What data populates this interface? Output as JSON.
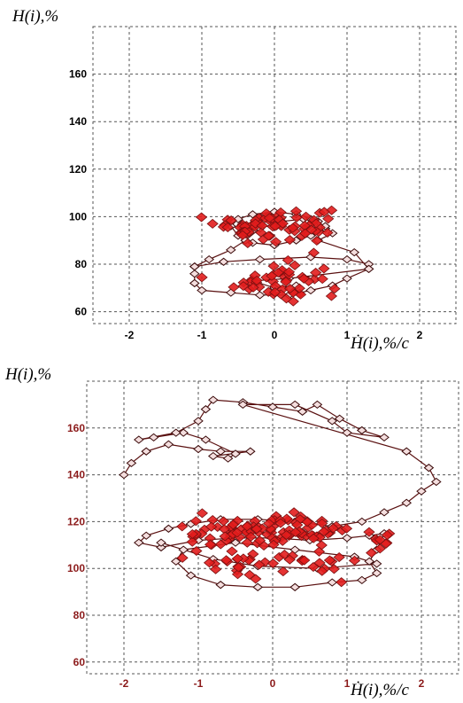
{
  "chart_data": [
    {
      "type": "scatter",
      "title": "",
      "ylabel": "H(i),%",
      "xlabel": "Ḣ(i),%/c",
      "xlim": [
        -2.5,
        2.5
      ],
      "ylim": [
        55,
        180
      ],
      "xticks": [
        -2,
        -1,
        0,
        1,
        2
      ],
      "yticks": [
        60,
        80,
        100,
        120,
        140,
        160
      ],
      "grid": true,
      "tick_color": "#000000",
      "line_color": "#5a1010",
      "marker_color": "#e21d1d",
      "trajectory": [
        [
          -1.1,
          79
        ],
        [
          -0.7,
          81
        ],
        [
          -0.2,
          82
        ],
        [
          0.5,
          83
        ],
        [
          1.0,
          82
        ],
        [
          1.3,
          80
        ],
        [
          1.3,
          78
        ],
        [
          1.0,
          74
        ],
        [
          0.8,
          71
        ],
        [
          0.5,
          69
        ],
        [
          0.2,
          67
        ],
        [
          -0.2,
          67
        ],
        [
          -0.6,
          68
        ],
        [
          -1.0,
          69
        ],
        [
          -1.1,
          72
        ],
        [
          -1.1,
          76
        ],
        [
          -1.1,
          79
        ],
        [
          -0.9,
          82
        ],
        [
          -0.6,
          86
        ],
        [
          -0.4,
          90
        ],
        [
          -0.2,
          95
        ],
        [
          0.1,
          98
        ],
        [
          0.4,
          99
        ],
        [
          0.6,
          98
        ],
        [
          0.7,
          95
        ],
        [
          0.5,
          92
        ],
        [
          0.3,
          90
        ],
        [
          0.0,
          88
        ],
        [
          -0.3,
          89
        ],
        [
          -0.5,
          92
        ],
        [
          -0.6,
          96
        ],
        [
          -0.5,
          99
        ],
        [
          -0.3,
          101
        ],
        [
          0.0,
          102
        ],
        [
          0.3,
          101
        ],
        [
          0.5,
          99
        ],
        [
          0.7,
          96
        ],
        [
          0.8,
          93
        ],
        [
          0.6,
          90
        ],
        [
          1.1,
          85
        ],
        [
          1.3,
          78
        ],
        [
          0.2,
          74
        ],
        [
          -0.3,
          73
        ],
        [
          0.0,
          70
        ],
        [
          0.3,
          71
        ]
      ],
      "clusters": [
        {
          "x": 0.0,
          "y": 98,
          "sx": 0.4,
          "sy": 3,
          "n": 55
        },
        {
          "x": -0.4,
          "y": 93,
          "sx": 0.2,
          "sy": 2,
          "n": 15
        },
        {
          "x": 0.05,
          "y": 73,
          "sx": 0.3,
          "sy": 4,
          "n": 50
        },
        {
          "x": 0.45,
          "y": 94,
          "sx": 0.2,
          "sy": 3,
          "n": 12
        }
      ]
    },
    {
      "type": "scatter",
      "title": "",
      "ylabel": "H(i),%",
      "xlabel": "Ḣ(i),%/c",
      "xlim": [
        -2.5,
        2.5
      ],
      "ylim": [
        55,
        180
      ],
      "xticks": [
        -2,
        -1,
        0,
        1,
        2
      ],
      "yticks": [
        60,
        80,
        100,
        120,
        140,
        160
      ],
      "grid": true,
      "tick_color": "#8b1a1a",
      "line_color": "#5a1010",
      "marker_color": "#e21d1d",
      "trajectory": [
        [
          -2.0,
          140
        ],
        [
          -1.9,
          145
        ],
        [
          -1.7,
          150
        ],
        [
          -1.4,
          153
        ],
        [
          -1.0,
          151
        ],
        [
          -0.7,
          150
        ],
        [
          -0.3,
          150
        ],
        [
          -0.8,
          148
        ],
        [
          -0.6,
          147
        ],
        [
          -0.5,
          149
        ],
        [
          -0.9,
          155
        ],
        [
          -1.2,
          158
        ],
        [
          -1.6,
          156
        ],
        [
          -1.8,
          155
        ],
        [
          -1.3,
          158
        ],
        [
          -1.0,
          163
        ],
        [
          -0.9,
          168
        ],
        [
          -0.8,
          172
        ],
        [
          -0.4,
          171
        ],
        [
          0.0,
          169
        ],
        [
          0.4,
          167
        ],
        [
          0.6,
          170
        ],
        [
          0.9,
          164
        ],
        [
          1.2,
          159
        ],
        [
          1.5,
          156
        ],
        [
          1.0,
          158
        ],
        [
          0.8,
          163
        ],
        [
          0.3,
          170
        ],
        [
          -0.4,
          170
        ],
        [
          1.8,
          150
        ],
        [
          2.1,
          143
        ],
        [
          2.2,
          137
        ],
        [
          2.0,
          133
        ],
        [
          1.8,
          128
        ],
        [
          1.5,
          124
        ],
        [
          1.2,
          120
        ],
        [
          0.8,
          118
        ],
        [
          0.3,
          120
        ],
        [
          -0.2,
          121
        ],
        [
          -0.7,
          121
        ],
        [
          -1.1,
          119
        ],
        [
          -1.4,
          117
        ],
        [
          -1.7,
          114
        ],
        [
          -1.8,
          111
        ],
        [
          -1.5,
          109
        ],
        [
          -1.0,
          112
        ],
        [
          -0.5,
          113
        ],
        [
          0.0,
          113
        ],
        [
          0.5,
          112
        ],
        [
          1.0,
          113
        ],
        [
          1.3,
          114
        ],
        [
          1.5,
          115
        ],
        [
          1.4,
          108
        ],
        [
          1.3,
          103
        ],
        [
          1.4,
          98
        ],
        [
          1.2,
          95
        ],
        [
          0.8,
          94
        ],
        [
          0.3,
          92
        ],
        [
          -0.2,
          92
        ],
        [
          -0.7,
          93
        ],
        [
          -1.1,
          97
        ],
        [
          -1.3,
          103
        ],
        [
          -1.2,
          108
        ],
        [
          -0.5,
          111
        ],
        [
          0.3,
          108
        ],
        [
          1.1,
          105
        ],
        [
          1.4,
          102
        ],
        [
          0.6,
          100
        ],
        [
          -0.2,
          101
        ],
        [
          -0.8,
          104
        ],
        [
          -1.5,
          111
        ]
      ],
      "clusters": [
        {
          "x": 0.0,
          "y": 117,
          "sx": 0.5,
          "sy": 3,
          "n": 70
        },
        {
          "x": -0.8,
          "y": 114,
          "sx": 0.3,
          "sy": 3,
          "n": 20
        },
        {
          "x": 0.5,
          "y": 116,
          "sx": 0.3,
          "sy": 3,
          "n": 20
        },
        {
          "x": 0.3,
          "y": 103,
          "sx": 0.5,
          "sy": 2.5,
          "n": 25
        },
        {
          "x": 1.5,
          "y": 112,
          "sx": 0.1,
          "sy": 3,
          "n": 10
        },
        {
          "x": -0.5,
          "y": 102,
          "sx": 0.4,
          "sy": 2.5,
          "n": 18
        }
      ]
    }
  ]
}
